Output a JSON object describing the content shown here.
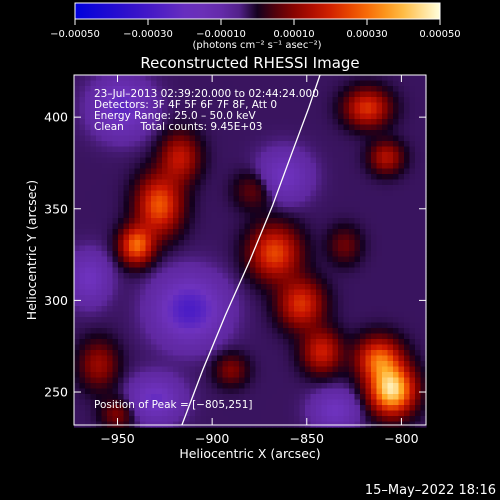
{
  "chart_data": {
    "type": "heatmap",
    "title": "Reconstructed RHESSI Image",
    "xlabel": "Heliocentric X (arcsec)",
    "ylabel": "Heliocentric Y (arcsec)",
    "xlim": [
      -973,
      -787
    ],
    "ylim": [
      232,
      423
    ],
    "x_ticks": [
      -950,
      -900,
      -850,
      -800
    ],
    "x_tick_labels": [
      "−950",
      "−900",
      "−850",
      "−800"
    ],
    "y_ticks": [
      250,
      300,
      350,
      400
    ],
    "y_tick_labels": [
      "250",
      "300",
      "350",
      "400"
    ],
    "colorbar": {
      "range": [
        -0.0005,
        0.0005
      ],
      "ticks": [
        -0.0005,
        -0.0003,
        -0.0001,
        0.0001,
        0.0003,
        0.0005
      ],
      "tick_labels": [
        "−0.00050",
        "−0.00030",
        "−0.00010",
        "0.00010",
        "0.00030",
        "0.00050"
      ],
      "units": "(photons cm⁻² s⁻¹ asec⁻²)"
    },
    "annotations": {
      "time_range": "23–Jul–2013 02:39:20.000 to 02:44:24.000",
      "detectors": "Detectors: 3F 4F 5F 6F 7F 8F, Att 0",
      "energy": "Energy Range: 25.0 – 50.0 keV",
      "method_counts": "Clean     Total counts: 9.45E+03",
      "peak": "Position of Peak = [−805,251]"
    },
    "peak_position": [
      -805,
      251
    ],
    "limb": [
      [
        -916,
        232
      ],
      [
        -905,
        262
      ],
      [
        -893,
        292
      ],
      [
        -880,
        322
      ],
      [
        -868,
        352
      ],
      [
        -858,
        380
      ],
      [
        -849,
        405
      ],
      [
        -843,
        423
      ]
    ],
    "sources": [
      {
        "x": -805,
        "y": 251,
        "amp": 0.00048,
        "sx": 8,
        "sy": 9
      },
      {
        "x": -812,
        "y": 268,
        "amp": 0.0003,
        "sx": 8,
        "sy": 8
      },
      {
        "x": -928,
        "y": 352,
        "amp": 0.0003,
        "sx": 8,
        "sy": 11
      },
      {
        "x": -940,
        "y": 330,
        "amp": 0.00032,
        "sx": 6,
        "sy": 7
      },
      {
        "x": -917,
        "y": 378,
        "amp": 0.0002,
        "sx": 7,
        "sy": 9
      },
      {
        "x": -867,
        "y": 326,
        "amp": 0.00028,
        "sx": 9,
        "sy": 10
      },
      {
        "x": -853,
        "y": 298,
        "amp": 0.00025,
        "sx": 8,
        "sy": 9
      },
      {
        "x": -842,
        "y": 272,
        "amp": 0.00022,
        "sx": 7,
        "sy": 8
      },
      {
        "x": -818,
        "y": 405,
        "amp": 0.00025,
        "sx": 8,
        "sy": 7
      },
      {
        "x": -808,
        "y": 378,
        "amp": 0.00018,
        "sx": 6,
        "sy": 6
      },
      {
        "x": -960,
        "y": 265,
        "amp": 0.00015,
        "sx": 7,
        "sy": 9
      },
      {
        "x": -950,
        "y": 238,
        "amp": 0.00012,
        "sx": 6,
        "sy": 6
      },
      {
        "x": -878,
        "y": 360,
        "amp": 0.0001,
        "sx": 7,
        "sy": 7
      },
      {
        "x": -890,
        "y": 262,
        "amp": 0.00012,
        "sx": 6,
        "sy": 6
      },
      {
        "x": -830,
        "y": 330,
        "amp": 0.0001,
        "sx": 6,
        "sy": 7
      },
      {
        "x": -948,
        "y": 405,
        "amp": -0.0002,
        "sx": 10,
        "sy": 10
      },
      {
        "x": -912,
        "y": 295,
        "amp": -0.00025,
        "sx": 12,
        "sy": 12
      },
      {
        "x": -965,
        "y": 312,
        "amp": -0.00015,
        "sx": 7,
        "sy": 9
      },
      {
        "x": -862,
        "y": 368,
        "amp": -0.00015,
        "sx": 9,
        "sy": 9
      },
      {
        "x": -835,
        "y": 240,
        "amp": -0.00015,
        "sx": 8,
        "sy": 7
      },
      {
        "x": -930,
        "y": 246,
        "amp": -0.00018,
        "sx": 9,
        "sy": 8
      }
    ]
  },
  "footer": {
    "timestamp": "15–May–2022 18:16"
  }
}
